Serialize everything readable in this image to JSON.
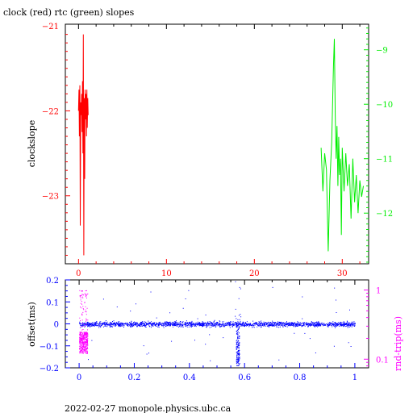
{
  "page": {
    "title": "clock (red) rtc (green) slopes",
    "footer": "2022-02-27 monopole.physics.ubc.ca"
  },
  "colors": {
    "red": "#ff0000",
    "green": "#00ee00",
    "blue": "#0000ff",
    "magenta": "#ff00ff",
    "black": "#000000"
  },
  "chart_data": [
    {
      "type": "line",
      "title": "clock (red) rtc (green) slopes",
      "xlabel": "",
      "ylabel": "clockslope",
      "y2label": "",
      "xlim": [
        -1.5,
        33
      ],
      "ylim": [
        -23.8,
        -20.98
      ],
      "y2lim": [
        -12.93,
        -8.53
      ],
      "x_ticks": [
        0,
        10,
        20,
        30
      ],
      "y_ticks": [
        -21,
        -22,
        -23
      ],
      "y2_ticks": [
        -9,
        -10,
        -11,
        -12
      ],
      "grid": false,
      "series": [
        {
          "name": "clock",
          "color": "red",
          "axis": "left",
          "x": [
            0.0,
            0.05,
            0.1,
            0.15,
            0.2,
            0.25,
            0.3,
            0.35,
            0.4,
            0.45,
            0.5,
            0.55,
            0.6,
            0.65,
            0.7,
            0.75,
            0.8,
            0.85,
            0.9,
            0.95,
            1.0,
            1.05,
            1.1
          ],
          "y": [
            -22.0,
            -21.75,
            -22.3,
            -21.7,
            -23.35,
            -21.9,
            -22.05,
            -21.8,
            -22.25,
            -21.65,
            -22.5,
            -21.1,
            -23.7,
            -21.85,
            -22.8,
            -21.75,
            -22.1,
            -21.8,
            -22.3,
            -21.75,
            -22.2,
            -21.85,
            -22.05
          ]
        },
        {
          "name": "rtc",
          "color": "green",
          "axis": "right",
          "x": [
            27.6,
            27.8,
            28.0,
            28.2,
            28.4,
            28.6,
            28.8,
            29.0,
            29.1,
            29.2,
            29.3,
            29.4,
            29.5,
            29.6,
            29.7,
            29.8,
            29.9,
            30.0,
            30.2,
            30.4,
            30.6,
            30.8,
            31.0,
            31.2,
            31.4,
            31.6,
            31.8,
            32.0,
            32.2,
            32.4
          ],
          "y": [
            -10.8,
            -11.6,
            -10.9,
            -11.2,
            -12.7,
            -11.4,
            -10.7,
            -9.3,
            -8.8,
            -10.2,
            -11.0,
            -10.4,
            -11.5,
            -10.6,
            -11.3,
            -11.0,
            -12.4,
            -10.8,
            -11.6,
            -10.9,
            -11.5,
            -11.1,
            -12.1,
            -11.0,
            -11.8,
            -11.3,
            -12.0,
            -11.4,
            -11.7,
            -11.5
          ]
        }
      ]
    },
    {
      "type": "scatter",
      "title": "",
      "xlabel": "",
      "ylabel": "offset(ms)",
      "y2label": "rnd-trip(ms)",
      "xlim": [
        -0.05,
        1.05
      ],
      "ylim": [
        -0.2,
        0.2
      ],
      "y2lim": [
        0.075,
        1.4
      ],
      "y2_scale": "log",
      "x_ticks": [
        0,
        0.2,
        0.4,
        0.6,
        0.8,
        1
      ],
      "y_ticks": [
        0.2,
        0.1,
        0,
        -0.1,
        -0.2
      ],
      "y2_ticks": [
        1,
        0.1
      ],
      "grid": false,
      "series": [
        {
          "name": "offset",
          "color": "blue",
          "description_band": "dense band near 0 spanning x 0 to 1 with a spike near x 0.575",
          "x_range": [
            0.0,
            1.0
          ],
          "y_center": 0.0,
          "y_spread": 0.012,
          "spike_x": 0.575,
          "spike_ylim": [
            -0.19,
            0.2
          ]
        },
        {
          "name": "rnd-trip",
          "color": "magenta",
          "x_range": [
            0.0,
            0.03
          ],
          "y_range": [
            0.1,
            1.0
          ]
        }
      ]
    }
  ]
}
